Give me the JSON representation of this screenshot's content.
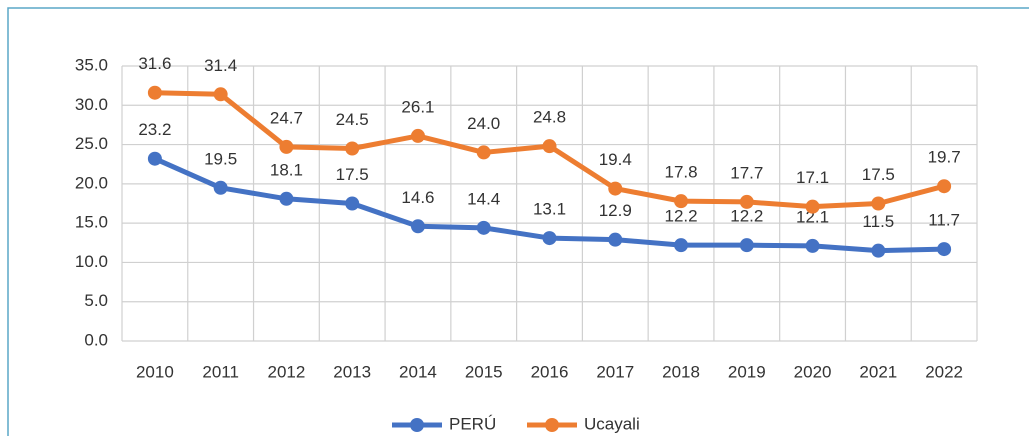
{
  "chart_data": {
    "type": "line",
    "categories": [
      "2010",
      "2011",
      "2012",
      "2013",
      "2014",
      "2015",
      "2016",
      "2017",
      "2018",
      "2019",
      "2020",
      "2021",
      "2022"
    ],
    "series": [
      {
        "name": "PERÚ",
        "color": "#4472c4",
        "values": [
          23.2,
          19.5,
          18.1,
          17.5,
          14.6,
          14.4,
          13.1,
          12.9,
          12.2,
          12.2,
          12.1,
          11.5,
          11.7
        ],
        "value_labels": [
          "23.2",
          "19.5",
          "18.1",
          "17.5",
          "14.6",
          "14.4",
          "13.1",
          "12.9",
          "12.2",
          "12.2",
          "12.1",
          "11.5",
          "11.7"
        ]
      },
      {
        "name": "Ucayali",
        "color": "#ed7d31",
        "values": [
          31.6,
          31.4,
          24.7,
          24.5,
          26.1,
          24.0,
          24.8,
          19.4,
          17.8,
          17.7,
          17.1,
          17.5,
          19.7
        ],
        "value_labels": [
          "31.6",
          "31.4",
          "24.7",
          "24.5",
          "26.1",
          "24.0",
          "24.8",
          "19.4",
          "17.8",
          "17.7",
          "17.1",
          "17.5",
          "19.7"
        ]
      }
    ],
    "ylim": [
      0,
      35
    ],
    "yticks": [
      {
        "value": 0,
        "label": "0.0"
      },
      {
        "value": 5,
        "label": "5.0"
      },
      {
        "value": 10,
        "label": "10.0"
      },
      {
        "value": 15,
        "label": "15.0"
      },
      {
        "value": 20,
        "label": "20.0"
      },
      {
        "value": 25,
        "label": "25.0"
      },
      {
        "value": 30,
        "label": "30.0"
      },
      {
        "value": 35,
        "label": "35.0"
      }
    ],
    "grid": true,
    "legend": "bottom"
  }
}
